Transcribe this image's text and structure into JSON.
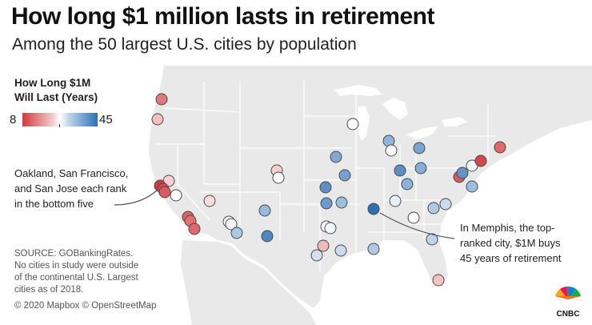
{
  "title": "How long $1 million lasts in retirement",
  "subtitle": "Among the 50 largest U.S. cities by population",
  "legend": {
    "title_line1": "How Long $1M",
    "title_line2": "Will Last (Years)",
    "min": "8",
    "max": "45",
    "color_low": "#d13a40",
    "color_mid": "#ffffff",
    "color_high": "#2e6fb4"
  },
  "annotations": {
    "oakland": [
      "Oakland, San Francisco,",
      "and San Jose each rank",
      "in the bottom five"
    ],
    "memphis": [
      "In Memphis, the top-",
      "ranked city, $1M buys",
      "45 years of retirement"
    ]
  },
  "source": [
    "SOURCE: GOBankingRates.",
    "No cities in study were outside",
    "of the continental U.S. Largest",
    "cities as of 2018."
  ],
  "copyright": "© 2020 Mapbox © OpenStreetMap",
  "brand": "CNBC",
  "colors": {
    "land": "#e9e9e9",
    "water": "#ffffff",
    "state_border": "#ffffff",
    "marker_stroke": "#4a4a4a"
  }
}
